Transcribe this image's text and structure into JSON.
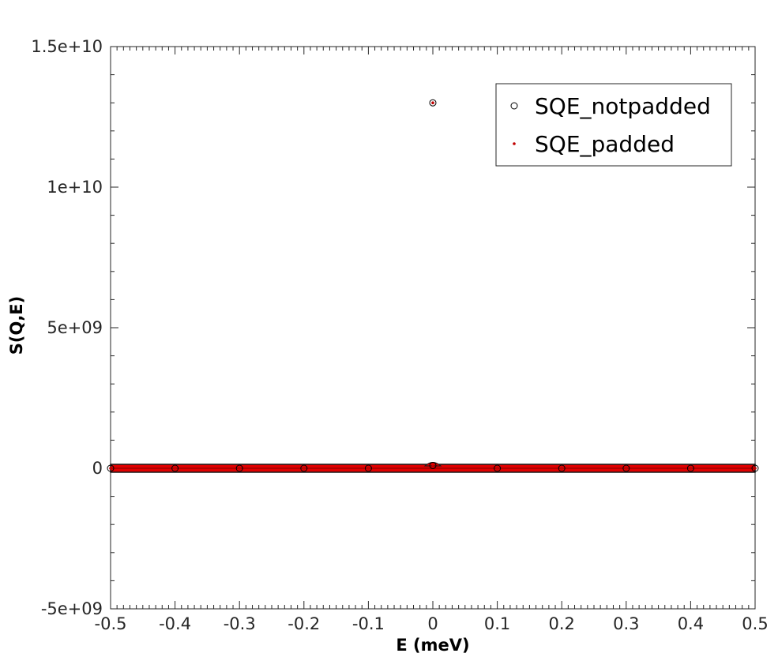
{
  "chart_data": {
    "type": "scatter",
    "title": "",
    "xlabel": "E (meV)",
    "ylabel": "S(Q,E)",
    "xlim": [
      -0.5,
      0.5
    ],
    "ylim": [
      -5000000000,
      15000000000
    ],
    "xticks": [
      -0.5,
      -0.4,
      -0.3,
      -0.2,
      -0.1,
      0,
      0.1,
      0.2,
      0.3,
      0.4,
      0.5
    ],
    "xtick_labels": [
      "-0.5",
      "-0.4",
      "-0.3",
      "-0.2",
      "-0.1",
      "0",
      "0.1",
      "0.2",
      "0.3",
      "0.4",
      "0.5"
    ],
    "yticks": [
      -5000000000,
      0,
      5000000000,
      10000000000,
      15000000000
    ],
    "ytick_labels": [
      "-5e+09",
      "0",
      "5e+09",
      "1e+10",
      "1.5e+10"
    ],
    "grid": false,
    "legend": "top-right",
    "series": [
      {
        "name": "SQE_notpadded",
        "marker": "open-circle",
        "color": "#000000",
        "x": [
          0,
          0,
          -0.5,
          -0.4,
          -0.3,
          -0.2,
          -0.1,
          0.1,
          0.2,
          0.3,
          0.4,
          0.5
        ],
        "y": [
          13000000000,
          100000000,
          0,
          0,
          0,
          0,
          0,
          0,
          0,
          0,
          0,
          0
        ]
      },
      {
        "name": "SQE_padded",
        "marker": "dot",
        "color": "#c00000",
        "x": [
          0,
          0,
          -0.5,
          -0.4,
          -0.3,
          -0.2,
          -0.1,
          0.1,
          0.2,
          0.3,
          0.4,
          0.5
        ],
        "y": [
          13000000000,
          50000000,
          0,
          0,
          0,
          0,
          0,
          0,
          0,
          0,
          0,
          0
        ]
      }
    ]
  }
}
